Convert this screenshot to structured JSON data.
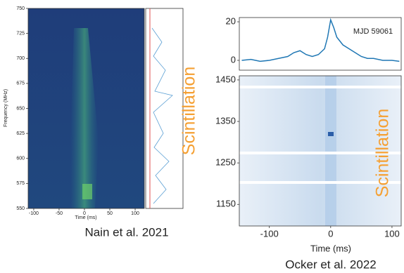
{
  "chart_data": [
    {
      "type": "heatmap",
      "xlabel": "Time (ms)",
      "ylabel": "Frequency (MHz)",
      "caption": "Nain et al. 2021",
      "annotation": "Scintillation",
      "xlim": [
        -111,
        118
      ],
      "ylim": [
        550,
        750
      ],
      "xticks": [
        -100,
        -50,
        0,
        50,
        100
      ],
      "yticks": [
        550,
        575,
        600,
        625,
        650,
        675,
        700,
        725,
        750
      ],
      "annotation_color": "#f5a033"
    },
    {
      "type": "line",
      "annotation": "MJD 59061",
      "color": "#1f77b4",
      "x": [
        -145,
        -130,
        -115,
        -100,
        -85,
        -70,
        -60,
        -50,
        -40,
        -30,
        -20,
        -10,
        -5,
        0,
        5,
        10,
        20,
        30,
        40,
        50,
        60,
        70,
        85,
        100,
        112
      ],
      "values": [
        0,
        0.5,
        -0.5,
        0,
        1,
        2,
        4,
        5,
        3,
        2,
        3,
        6,
        12,
        21,
        17,
        12,
        8,
        6,
        4,
        2,
        1,
        1,
        0,
        0,
        -0.5
      ],
      "xlim": [
        -149,
        115
      ],
      "ylim": [
        -5.1,
        22.2
      ],
      "yticks": [
        0,
        20
      ]
    },
    {
      "type": "heatmap",
      "xlabel": "Time (ms)",
      "caption": "Ocker et al. 2022",
      "annotation": "Scintillation",
      "xlim": [
        -149,
        115
      ],
      "ylim": [
        1098,
        1460
      ],
      "xticks": [
        -100,
        0,
        100
      ],
      "yticks": [
        1150,
        1250,
        1350,
        1450
      ],
      "annotation_color": "#f5a033"
    }
  ]
}
